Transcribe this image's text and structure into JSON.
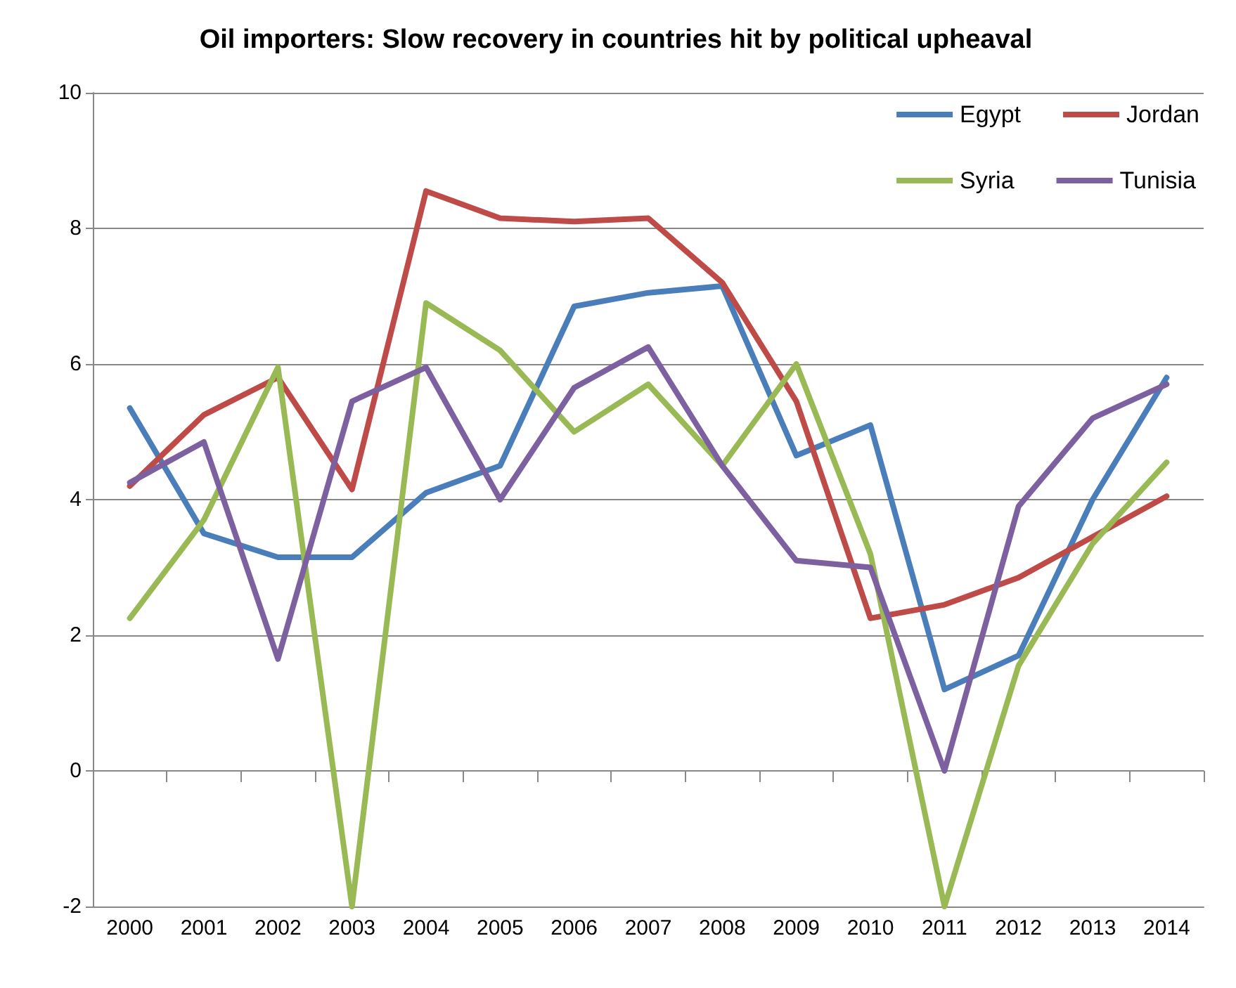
{
  "chart_data": {
    "type": "line",
    "title": "Oil importers: Slow recovery in countries hit by political upheaval",
    "categories": [
      "2000",
      "2001",
      "2002",
      "2003",
      "2004",
      "2005",
      "2006",
      "2007",
      "2008",
      "2009",
      "2010",
      "2011",
      "2012",
      "2013",
      "2014"
    ],
    "series": [
      {
        "name": "Egypt",
        "color": "#4a7ebb",
        "values": [
          5.35,
          3.5,
          3.15,
          3.15,
          4.1,
          4.5,
          6.85,
          7.05,
          7.15,
          4.65,
          5.1,
          1.2,
          1.7,
          4.0,
          5.8
        ]
      },
      {
        "name": "Jordan",
        "color": "#be4b48",
        "values": [
          4.2,
          5.25,
          5.8,
          4.15,
          8.55,
          8.15,
          8.1,
          8.15,
          7.2,
          5.45,
          2.25,
          2.45,
          2.85,
          3.45,
          4.05
        ]
      },
      {
        "name": "Syria",
        "color": "#98b954",
        "values": [
          2.25,
          3.7,
          5.95,
          -2.0,
          6.9,
          6.2,
          5.0,
          5.7,
          4.5,
          6.0,
          3.2,
          -2.0,
          1.55,
          3.35,
          4.55
        ]
      },
      {
        "name": "Tunisia",
        "color": "#7d60a0",
        "values": [
          4.25,
          4.85,
          1.65,
          5.45,
          5.95,
          4.0,
          5.65,
          6.25,
          4.5,
          3.1,
          3.0,
          0.0,
          3.9,
          5.2,
          5.7
        ]
      }
    ],
    "ylim": [
      -2,
      10
    ],
    "yticks": [
      -2,
      0,
      2,
      4,
      6,
      8,
      10
    ],
    "grid": "y",
    "legend": "top right",
    "marker": "none",
    "line_style": "solid"
  }
}
